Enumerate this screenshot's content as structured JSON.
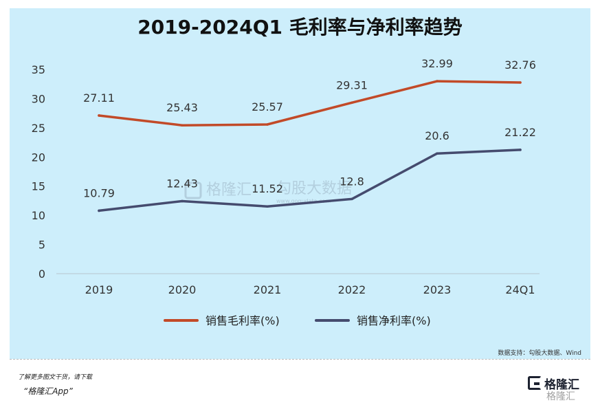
{
  "title": "2019-2024Q1 毛利率与净利率趋势",
  "source": "数据支持：勾股大数据、Wind",
  "footer": {
    "line1": "了解更多图文干货，请下载",
    "line2": "“格隆汇App”"
  },
  "brand": {
    "name": "格隆汇",
    "small": "格隆汇"
  },
  "watermark": {
    "brand": "格隆汇",
    "name": "勾股大数据",
    "url": "www.gogudata.com"
  },
  "colors": {
    "background": "#cdeefb",
    "gross": "#c24a28",
    "net": "#454b6e"
  },
  "chart_data": {
    "type": "line",
    "categories": [
      "2019",
      "2020",
      "2021",
      "2022",
      "2023",
      "24Q1"
    ],
    "ylim": [
      0,
      35
    ],
    "yticks": [
      "0",
      "5",
      "10",
      "15",
      "20",
      "25",
      "30",
      "35"
    ],
    "xlabel": "",
    "ylabel": "",
    "grid": false,
    "legend_position": "bottom-center",
    "series": [
      {
        "name": "销售毛利率(%)",
        "color": "#c24a28",
        "values": [
          27.11,
          25.43,
          25.57,
          29.31,
          32.99,
          32.76
        ],
        "labels": [
          "27.11",
          "25.43",
          "25.57",
          "29.31",
          "32.99",
          "32.76"
        ]
      },
      {
        "name": "销售净利率(%)",
        "color": "#454b6e",
        "values": [
          10.79,
          12.43,
          11.52,
          12.8,
          20.6,
          21.22
        ],
        "labels": [
          "10.79",
          "12.43",
          "11.52",
          "12.8",
          "20.6",
          "21.22"
        ]
      }
    ]
  }
}
